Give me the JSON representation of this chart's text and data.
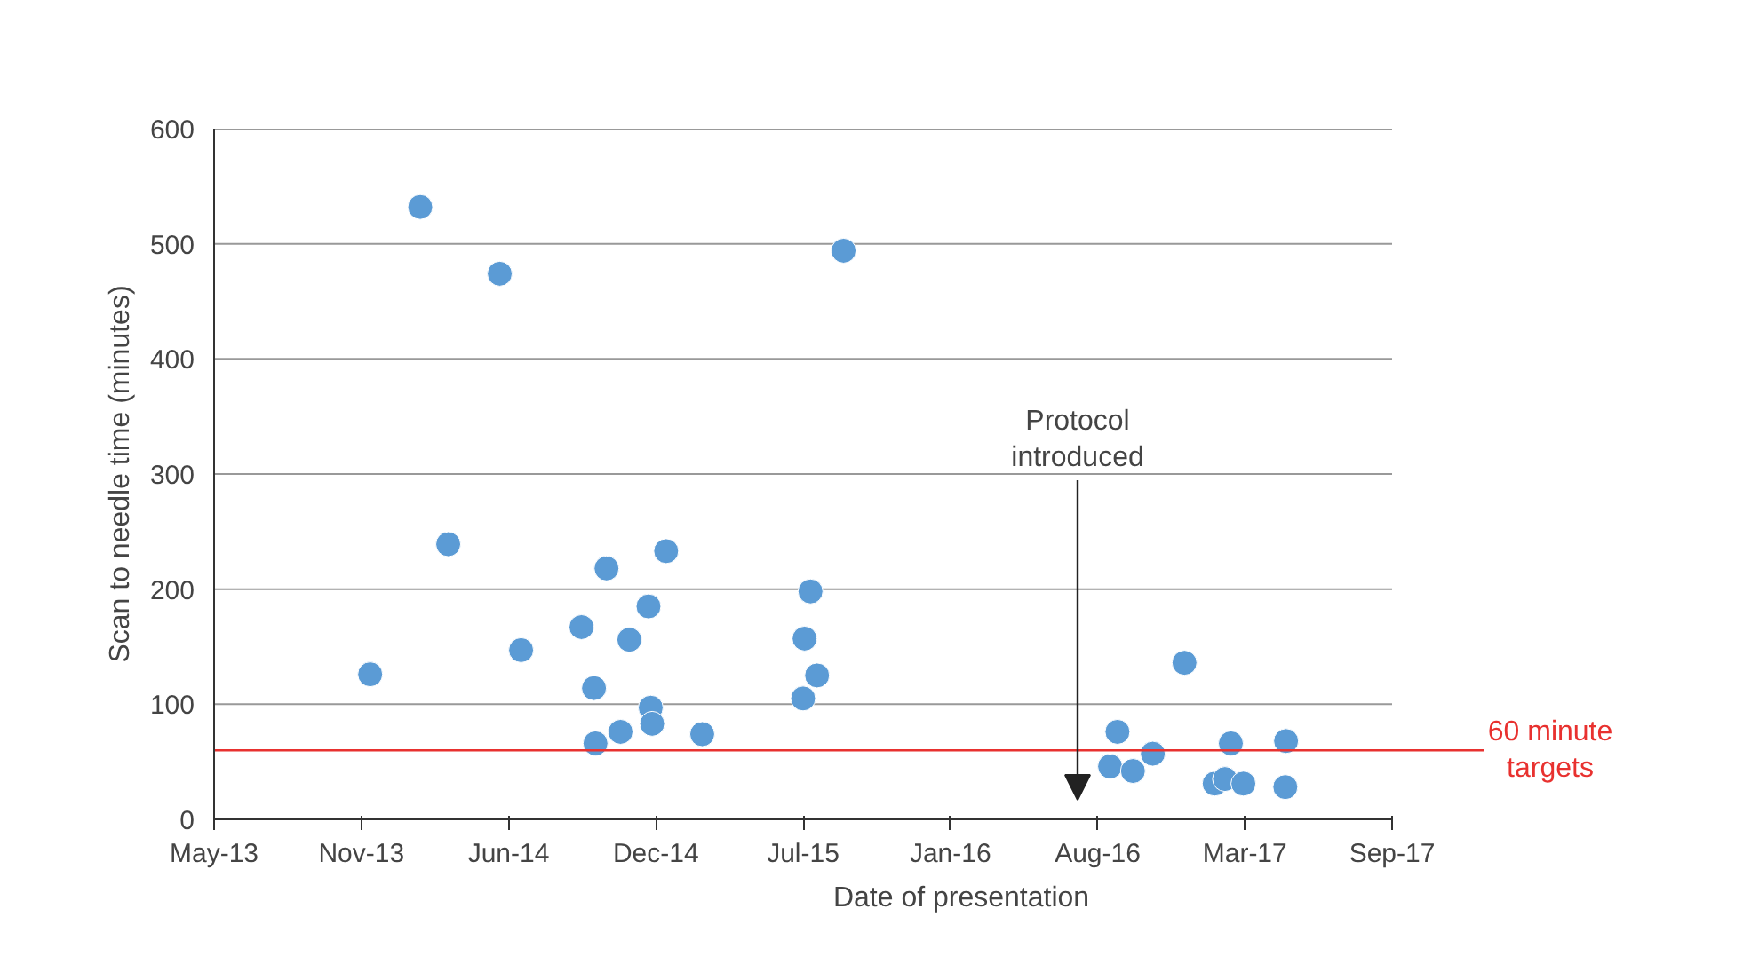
{
  "chart_data": {
    "type": "scatter",
    "xlabel": "Date of presentation",
    "ylabel": "Scan to needle time (minutes)",
    "x": [
      "2013-11-29",
      "2014-02-05",
      "2014-03-15",
      "2014-05-24",
      "2014-06-22",
      "2014-09-12",
      "2014-09-29",
      "2014-10-01",
      "2014-10-16",
      "2014-11-04",
      "2014-11-16",
      "2014-12-12",
      "2014-12-15",
      "2014-12-17",
      "2015-01-05",
      "2015-02-23",
      "2015-07-10",
      "2015-07-12",
      "2015-07-20",
      "2015-07-29",
      "2015-09-03",
      "2016-08-30",
      "2016-09-09",
      "2016-09-30",
      "2016-10-27",
      "2016-12-09",
      "2017-01-19",
      "2017-02-02",
      "2017-02-10",
      "2017-02-27",
      "2017-04-25",
      "2017-04-26"
    ],
    "series": [
      {
        "color": "#5b9bd5",
        "values": [
          126,
          532,
          239,
          474,
          147,
          167,
          114,
          66,
          218,
          76,
          156,
          185,
          97,
          83,
          233,
          74,
          105,
          157,
          198,
          125,
          494,
          46,
          76,
          42,
          57,
          136,
          31,
          35,
          66,
          31,
          28,
          68
        ]
      }
    ],
    "marker": "circle",
    "grid": "y",
    "xlim": [
      "2013-05-01",
      "2017-09-17"
    ],
    "xticks": [
      {
        "value": "2013-05-01",
        "label": "May-13"
      },
      {
        "value": "2013-11-17",
        "label": "Nov-13"
      },
      {
        "value": "2014-06-05",
        "label": "Jun-14"
      },
      {
        "value": "2014-12-22",
        "label": "Dec-14"
      },
      {
        "value": "2015-07-10",
        "label": "Jul-15"
      },
      {
        "value": "2016-01-26",
        "label": "Jan-16"
      },
      {
        "value": "2016-08-13",
        "label": "Aug-16"
      },
      {
        "value": "2017-03-01",
        "label": "Mar-17"
      },
      {
        "value": "2017-09-17",
        "label": "Sep-17"
      }
    ],
    "ylim": [
      0,
      600
    ],
    "yticks": [
      0,
      100,
      200,
      300,
      400,
      500,
      600
    ],
    "ref_lines": [
      {
        "axis": "y",
        "value": 60,
        "label": "60 minute targets",
        "color": "#e8312f"
      }
    ],
    "annotations": [
      "Protocol introduced"
    ]
  }
}
